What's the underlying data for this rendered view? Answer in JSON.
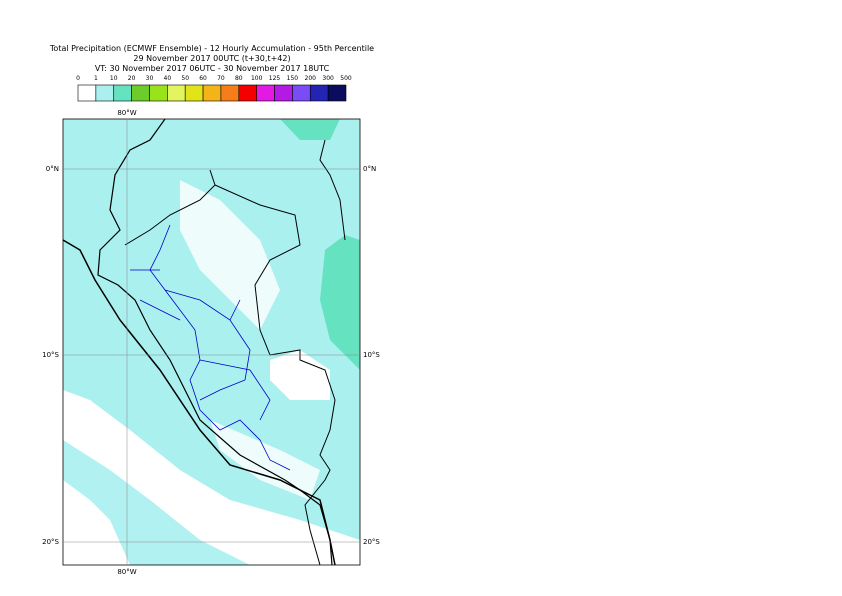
{
  "header": {
    "title_lines": [
      "Total Precipitation (ECMWF Ensemble) - 12 Hourly Accumulation - 95th Percentile",
      "29 November 2017 00UTC (t+30,t+42)",
      "VT: 30 November 2017 06UTC - 30 November 2017 18UTC"
    ]
  },
  "legend": {
    "labels": [
      "0",
      "1",
      "10",
      "20",
      "30",
      "40",
      "50",
      "60",
      "70",
      "80",
      "100",
      "125",
      "150",
      "200",
      "300",
      "500"
    ],
    "colors": [
      "#ffffff",
      "#aaf0ef",
      "#65e3c0",
      "#6ecb2c",
      "#9ae31a",
      "#e3f55e",
      "#e3e31a",
      "#f5b31a",
      "#f57e1a",
      "#f50000",
      "#e31ae3",
      "#b31ae3",
      "#7a4cf5",
      "#2424b3",
      "#0c0c5e"
    ]
  },
  "map": {
    "lon_labels": [
      "80°W"
    ],
    "lat_labels": [
      "0°N",
      "10°S",
      "20°S"
    ]
  }
}
